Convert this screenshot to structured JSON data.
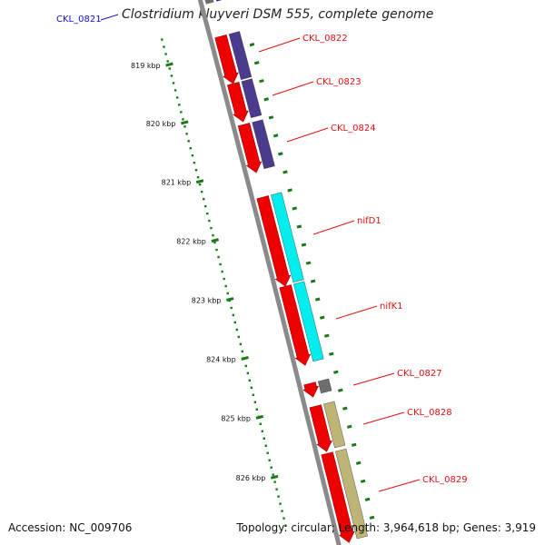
{
  "title": "Clostridium kluyveri DSM 555, complete genome",
  "accession": "Accession: NC_009706",
  "topology": "Topology: circular; Length: 3,964,618 bp; Genes: 3,919",
  "colors": {
    "genome_line": "#8a8a8a",
    "gene_red": "#ee0000",
    "cog_purple": "#4c3a8c",
    "cog_cyan": "#00eeee",
    "cog_khaki": "#bdb476",
    "cog_gray": "#6e6e6e",
    "cog_blue": "#1a1aee",
    "tick_green": "#1a7a1a",
    "label_red": "#dd1111",
    "label_blue": "#1111cc"
  },
  "ticks": [
    "819 kbp",
    "820 kbp",
    "821 kbp",
    "822 kbp",
    "823 kbp",
    "824 kbp",
    "825 kbp",
    "826 kbp"
  ],
  "genes": [
    {
      "label": "CKL_0821",
      "label_color": "blue"
    },
    {
      "label": "CKL_0822",
      "label_color": "red"
    },
    {
      "label": "CKL_0823",
      "label_color": "red"
    },
    {
      "label": "CKL_0824",
      "label_color": "red"
    },
    {
      "label": "nifD1",
      "label_color": "red"
    },
    {
      "label": "nifK1",
      "label_color": "red"
    },
    {
      "label": "CKL_0827",
      "label_color": "red"
    },
    {
      "label": "CKL_0828",
      "label_color": "red"
    },
    {
      "label": "CKL_0829",
      "label_color": "red"
    }
  ]
}
